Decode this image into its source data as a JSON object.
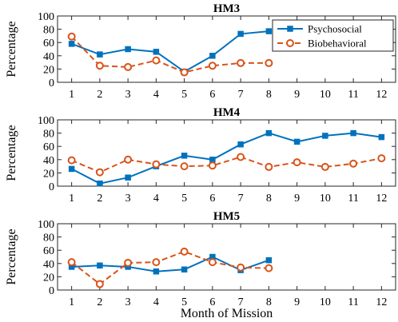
{
  "chart_data": [
    {
      "type": "line",
      "title": "HM3",
      "ylabel": "Percentage",
      "xlabel": "",
      "ylim": [
        0,
        100
      ],
      "xlim": [
        0.5,
        12.5
      ],
      "yticks": [
        0,
        20,
        40,
        60,
        80,
        100
      ],
      "xticks": [
        1,
        2,
        3,
        4,
        5,
        6,
        7,
        8,
        9,
        10,
        11,
        12
      ],
      "legend": {
        "placement": "top-right"
      },
      "series": [
        {
          "name": "Psychosocial",
          "color": "#0072BD",
          "style": "solid",
          "marker": "square",
          "x": [
            1,
            2,
            3,
            4,
            5,
            6,
            7,
            8
          ],
          "values": [
            58,
            42,
            50,
            46,
            16,
            40,
            73,
            77
          ]
        },
        {
          "name": "Biobehavioral",
          "color": "#D95319",
          "style": "dashed",
          "marker": "circle",
          "x": [
            1,
            2,
            3,
            4,
            5,
            6,
            7,
            8
          ],
          "values": [
            69,
            25,
            23,
            33,
            15,
            25,
            29,
            29
          ]
        }
      ]
    },
    {
      "type": "line",
      "title": "HM4",
      "ylabel": "Percentage",
      "xlabel": "",
      "ylim": [
        0,
        100
      ],
      "xlim": [
        0.5,
        12.5
      ],
      "yticks": [
        0,
        20,
        40,
        60,
        80,
        100
      ],
      "xticks": [
        1,
        2,
        3,
        4,
        5,
        6,
        7,
        8,
        9,
        10,
        11,
        12
      ],
      "series": [
        {
          "name": "Psychosocial",
          "color": "#0072BD",
          "style": "solid",
          "marker": "square",
          "x": [
            1,
            2,
            3,
            4,
            5,
            6,
            7,
            8,
            9,
            10,
            11,
            12
          ],
          "values": [
            26,
            4,
            13,
            30,
            46,
            40,
            63,
            80,
            67,
            76,
            80,
            74
          ]
        },
        {
          "name": "Biobehavioral",
          "color": "#D95319",
          "style": "dashed",
          "marker": "circle",
          "x": [
            1,
            2,
            3,
            4,
            5,
            6,
            7,
            8,
            9,
            10,
            11,
            12
          ],
          "values": [
            39,
            21,
            40,
            33,
            30,
            31,
            44,
            29,
            36,
            29,
            34,
            42
          ]
        }
      ]
    },
    {
      "type": "line",
      "title": "HM5",
      "ylabel": "Percentage",
      "xlabel": "Month of Mission",
      "ylim": [
        0,
        100
      ],
      "xlim": [
        0.5,
        12.5
      ],
      "yticks": [
        0,
        20,
        40,
        60,
        80,
        100
      ],
      "xticks": [
        1,
        2,
        3,
        4,
        5,
        6,
        7,
        8,
        9,
        10,
        11,
        12
      ],
      "series": [
        {
          "name": "Psychosocial",
          "color": "#0072BD",
          "style": "solid",
          "marker": "square",
          "x": [
            1,
            2,
            3,
            4,
            5,
            6,
            7,
            8
          ],
          "values": [
            35,
            37,
            35,
            28,
            31,
            50,
            30,
            45
          ]
        },
        {
          "name": "Biobehavioral",
          "color": "#D95319",
          "style": "dashed",
          "marker": "circle",
          "x": [
            1,
            2,
            3,
            4,
            5,
            6,
            7,
            8
          ],
          "values": [
            42,
            9,
            41,
            42,
            58,
            42,
            34,
            33
          ]
        }
      ]
    }
  ]
}
